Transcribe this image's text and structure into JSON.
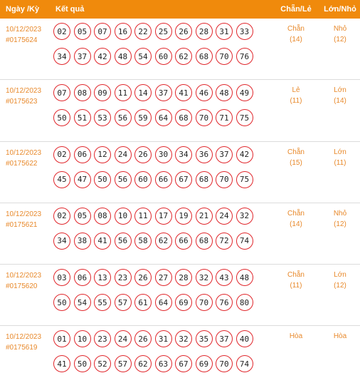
{
  "header": {
    "date": "Ngày /Kỳ",
    "result": "Kết quả",
    "chanle": "Chẵn/Lẻ",
    "lonnho": "Lớn/Nhỏ"
  },
  "rows": [
    {
      "date": "10/12/2023",
      "id": "#0175624",
      "nums": [
        "02",
        "05",
        "07",
        "16",
        "22",
        "25",
        "26",
        "28",
        "31",
        "33",
        "34",
        "37",
        "42",
        "48",
        "54",
        "60",
        "62",
        "68",
        "70",
        "76"
      ],
      "chanle": "Chẵn",
      "chanle_count": "(14)",
      "lonnho": "Nhỏ",
      "lonnho_count": "(12)"
    },
    {
      "date": "10/12/2023",
      "id": "#0175623",
      "nums": [
        "07",
        "08",
        "09",
        "11",
        "14",
        "37",
        "41",
        "46",
        "48",
        "49",
        "50",
        "51",
        "53",
        "56",
        "59",
        "64",
        "68",
        "70",
        "71",
        "75"
      ],
      "chanle": "Lẻ",
      "chanle_count": "(11)",
      "lonnho": "Lớn",
      "lonnho_count": "(14)"
    },
    {
      "date": "10/12/2023",
      "id": "#0175622",
      "nums": [
        "02",
        "06",
        "12",
        "24",
        "26",
        "30",
        "34",
        "36",
        "37",
        "42",
        "45",
        "47",
        "50",
        "56",
        "60",
        "66",
        "67",
        "68",
        "70",
        "75"
      ],
      "chanle": "Chẵn",
      "chanle_count": "(15)",
      "lonnho": "Lớn",
      "lonnho_count": "(11)"
    },
    {
      "date": "10/12/2023",
      "id": "#0175621",
      "nums": [
        "02",
        "05",
        "08",
        "10",
        "11",
        "17",
        "19",
        "21",
        "24",
        "32",
        "34",
        "38",
        "41",
        "56",
        "58",
        "62",
        "66",
        "68",
        "72",
        "74"
      ],
      "chanle": "Chẵn",
      "chanle_count": "(14)",
      "lonnho": "Nhỏ",
      "lonnho_count": "(12)"
    },
    {
      "date": "10/12/2023",
      "id": "#0175620",
      "nums": [
        "03",
        "06",
        "13",
        "23",
        "26",
        "27",
        "28",
        "32",
        "43",
        "48",
        "50",
        "54",
        "55",
        "57",
        "61",
        "64",
        "69",
        "70",
        "76",
        "80"
      ],
      "chanle": "Chẵn",
      "chanle_count": "(11)",
      "lonnho": "Lớn",
      "lonnho_count": "(12)"
    },
    {
      "date": "10/12/2023",
      "id": "#0175619",
      "nums": [
        "01",
        "10",
        "23",
        "24",
        "26",
        "31",
        "32",
        "35",
        "37",
        "40",
        "41",
        "50",
        "52",
        "57",
        "62",
        "63",
        "67",
        "69",
        "70",
        "74"
      ],
      "chanle": "Hòa",
      "chanle_count": "",
      "lonnho": "Hòa",
      "lonnho_count": ""
    }
  ]
}
